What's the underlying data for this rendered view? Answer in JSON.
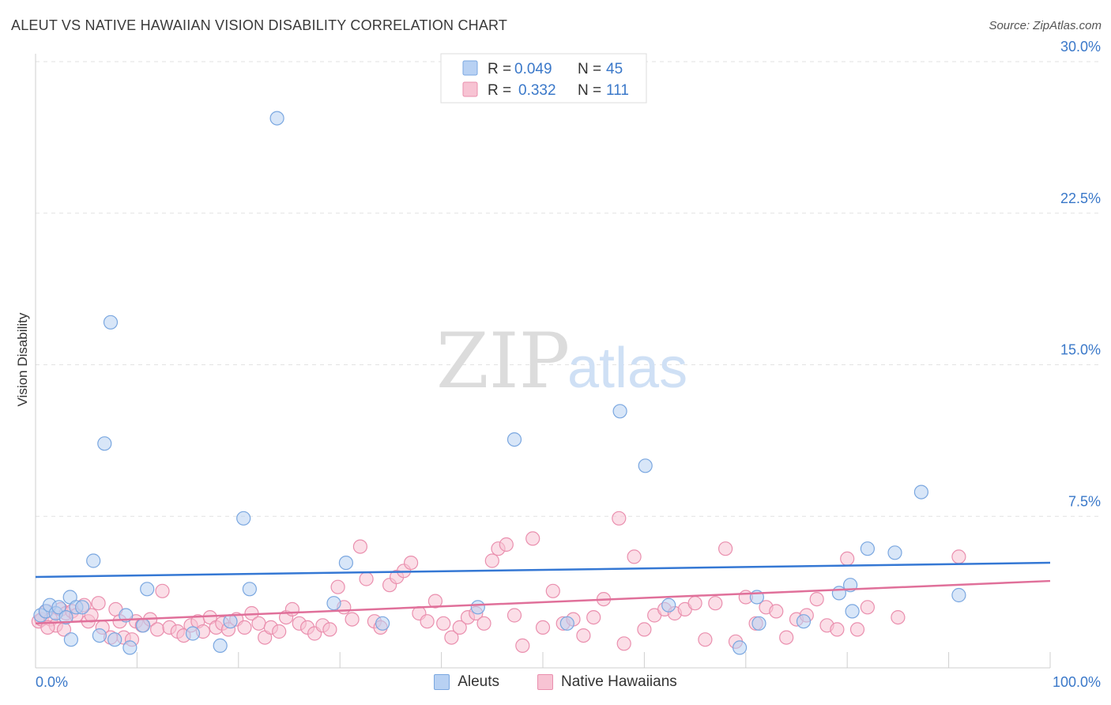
{
  "title": "ALEUT VS NATIVE HAWAIIAN VISION DISABILITY CORRELATION CHART",
  "source": "Source: ZipAtlas.com",
  "watermark": {
    "zip": "ZIP",
    "atlas": "atlas"
  },
  "colors": {
    "blue_fill": "#b8d1f3",
    "blue_stroke": "#7aa7e0",
    "blue_line": "#3578d4",
    "pink_fill": "#f7c3d3",
    "pink_stroke": "#ea8fae",
    "pink_line": "#e0709a",
    "value_text": "#3a78c9",
    "grid": "#e2e2e2"
  },
  "chart_data": {
    "type": "scatter",
    "xlabel": "",
    "ylabel": "Vision Disability",
    "xlim": [
      0,
      100
    ],
    "ylim": [
      0,
      30
    ],
    "x_tick_labels": [
      "0.0%",
      "100.0%"
    ],
    "y_ticks": [
      7.5,
      15.0,
      22.5,
      30.0
    ],
    "y_tick_labels": [
      "7.5%",
      "15.0%",
      "22.5%",
      "30.0%"
    ],
    "legend_stats": [
      {
        "r_label": "R =",
        "r_value": "0.049",
        "n_label": "N =",
        "n_value": "45"
      },
      {
        "r_label": "R =",
        "r_value": "0.332",
        "n_label": "N =",
        "n_value": "111"
      }
    ],
    "series": [
      {
        "name": "Aleuts",
        "color": "blue",
        "trend": [
          [
            0,
            4.5
          ],
          [
            100,
            5.2
          ]
        ],
        "points": [
          [
            0.5,
            2.6
          ],
          [
            1.0,
            2.8
          ],
          [
            1.4,
            3.1
          ],
          [
            2.0,
            2.7
          ],
          [
            2.3,
            3.0
          ],
          [
            3.0,
            2.5
          ],
          [
            3.4,
            3.5
          ],
          [
            3.5,
            1.4
          ],
          [
            4.0,
            3.0
          ],
          [
            4.6,
            3.0
          ],
          [
            5.7,
            5.3
          ],
          [
            6.3,
            1.6
          ],
          [
            6.8,
            11.1
          ],
          [
            7.4,
            17.1
          ],
          [
            7.8,
            1.4
          ],
          [
            8.9,
            2.6
          ],
          [
            9.3,
            1.0
          ],
          [
            10.6,
            2.1
          ],
          [
            11.0,
            3.9
          ],
          [
            15.5,
            1.7
          ],
          [
            18.2,
            1.1
          ],
          [
            19.2,
            2.3
          ],
          [
            20.5,
            7.4
          ],
          [
            21.1,
            3.9
          ],
          [
            23.8,
            27.2
          ],
          [
            29.4,
            3.2
          ],
          [
            30.6,
            5.2
          ],
          [
            34.2,
            2.2
          ],
          [
            43.6,
            3.0
          ],
          [
            47.2,
            11.3
          ],
          [
            52.4,
            2.2
          ],
          [
            57.6,
            12.7
          ],
          [
            60.1,
            10.0
          ],
          [
            62.4,
            3.1
          ],
          [
            69.4,
            1.0
          ],
          [
            71.1,
            3.5
          ],
          [
            71.3,
            2.2
          ],
          [
            75.7,
            2.3
          ],
          [
            79.2,
            3.7
          ],
          [
            80.3,
            4.1
          ],
          [
            80.5,
            2.8
          ],
          [
            82.0,
            5.9
          ],
          [
            84.7,
            5.7
          ],
          [
            87.3,
            8.7
          ],
          [
            91.0,
            3.6
          ]
        ]
      },
      {
        "name": "Native Hawaiians",
        "color": "pink",
        "trend": [
          [
            0,
            2.2
          ],
          [
            100,
            4.3
          ]
        ],
        "points": [
          [
            0.3,
            2.3
          ],
          [
            0.6,
            2.4
          ],
          [
            1.1,
            2.8
          ],
          [
            1.5,
            2.4
          ],
          [
            2.0,
            2.1
          ],
          [
            2.5,
            2.9
          ],
          [
            2.8,
            1.9
          ],
          [
            3.0,
            2.7
          ],
          [
            3.6,
            2.8
          ],
          [
            4.0,
            2.6
          ],
          [
            4.8,
            3.1
          ],
          [
            5.2,
            2.3
          ],
          [
            5.5,
            2.6
          ],
          [
            6.2,
            3.2
          ],
          [
            6.6,
            2.0
          ],
          [
            7.4,
            1.5
          ],
          [
            7.9,
            2.9
          ],
          [
            8.3,
            2.3
          ],
          [
            8.7,
            1.5
          ],
          [
            9.5,
            1.4
          ],
          [
            9.9,
            2.3
          ],
          [
            10.5,
            2.1
          ],
          [
            11.3,
            2.4
          ],
          [
            12.0,
            1.9
          ],
          [
            12.5,
            3.8
          ],
          [
            13.2,
            2.0
          ],
          [
            14.0,
            1.8
          ],
          [
            14.6,
            1.6
          ],
          [
            15.3,
            2.1
          ],
          [
            16.0,
            2.3
          ],
          [
            16.5,
            1.8
          ],
          [
            17.2,
            2.5
          ],
          [
            17.8,
            2.0
          ],
          [
            18.4,
            2.2
          ],
          [
            19.0,
            1.9
          ],
          [
            19.8,
            2.4
          ],
          [
            20.6,
            2.0
          ],
          [
            21.3,
            2.7
          ],
          [
            22.0,
            2.2
          ],
          [
            22.6,
            1.5
          ],
          [
            23.2,
            2.0
          ],
          [
            24.0,
            1.8
          ],
          [
            24.7,
            2.5
          ],
          [
            25.3,
            2.9
          ],
          [
            26.0,
            2.2
          ],
          [
            26.8,
            2.0
          ],
          [
            27.5,
            1.7
          ],
          [
            28.3,
            2.1
          ],
          [
            29.0,
            1.9
          ],
          [
            29.8,
            4.0
          ],
          [
            30.4,
            3.0
          ],
          [
            31.2,
            2.4
          ],
          [
            32.0,
            6.0
          ],
          [
            32.6,
            4.4
          ],
          [
            33.4,
            2.3
          ],
          [
            34.0,
            2.0
          ],
          [
            34.9,
            4.1
          ],
          [
            35.6,
            4.5
          ],
          [
            36.3,
            4.8
          ],
          [
            37.0,
            5.2
          ],
          [
            37.8,
            2.7
          ],
          [
            38.6,
            2.3
          ],
          [
            39.4,
            3.3
          ],
          [
            40.2,
            2.2
          ],
          [
            41.0,
            1.5
          ],
          [
            41.8,
            2.0
          ],
          [
            42.6,
            2.5
          ],
          [
            43.4,
            2.7
          ],
          [
            44.2,
            2.2
          ],
          [
            45.0,
            5.3
          ],
          [
            45.6,
            5.9
          ],
          [
            46.4,
            6.1
          ],
          [
            47.2,
            2.6
          ],
          [
            48.0,
            1.1
          ],
          [
            49.0,
            6.4
          ],
          [
            50.0,
            2.0
          ],
          [
            51.0,
            3.8
          ],
          [
            52.0,
            2.2
          ],
          [
            53.0,
            2.4
          ],
          [
            54.0,
            1.6
          ],
          [
            55.0,
            2.5
          ],
          [
            56.0,
            3.4
          ],
          [
            57.5,
            7.4
          ],
          [
            58.0,
            1.2
          ],
          [
            59.0,
            5.5
          ],
          [
            60.0,
            1.9
          ],
          [
            61.0,
            2.6
          ],
          [
            62.0,
            2.9
          ],
          [
            63.0,
            2.7
          ],
          [
            64.0,
            2.9
          ],
          [
            65.0,
            3.2
          ],
          [
            66.0,
            1.4
          ],
          [
            67.0,
            3.2
          ],
          [
            68.0,
            5.9
          ],
          [
            69.0,
            1.3
          ],
          [
            70.0,
            3.5
          ],
          [
            71.0,
            2.2
          ],
          [
            72.0,
            3.0
          ],
          [
            73.0,
            2.8
          ],
          [
            74.0,
            1.5
          ],
          [
            75.0,
            2.4
          ],
          [
            76.0,
            2.6
          ],
          [
            77.0,
            3.4
          ],
          [
            78.0,
            2.1
          ],
          [
            79.0,
            1.9
          ],
          [
            80.0,
            5.4
          ],
          [
            81.0,
            1.9
          ],
          [
            82.0,
            3.0
          ],
          [
            85.0,
            2.5
          ],
          [
            91.0,
            5.5
          ],
          [
            1.2,
            2.0
          ]
        ]
      }
    ]
  }
}
